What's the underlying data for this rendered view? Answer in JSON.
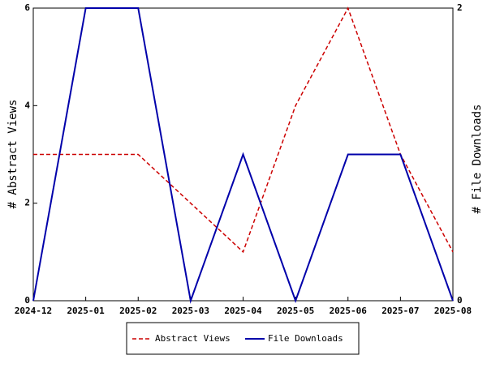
{
  "chart_data": {
    "type": "line",
    "y_label": "# Abstract Views",
    "y2_label": "# File Downloads",
    "categories": [
      "2024-12",
      "2025-01",
      "2025-02",
      "2025-03",
      "2025-04",
      "2025-05",
      "2025-06",
      "2025-07",
      "2025-08"
    ],
    "series": [
      {
        "name": "Abstract Views",
        "color": "#cc0000",
        "dash": true,
        "values": [
          3,
          3,
          3,
          2,
          1,
          4,
          6,
          3,
          1
        ]
      },
      {
        "name": "File Downloads",
        "color": "#0000aa",
        "dash": false,
        "axis": "y2",
        "values": [
          0,
          2,
          2,
          0,
          1,
          0,
          1,
          1,
          0
        ]
      }
    ],
    "ylim": [
      0,
      6
    ],
    "yticks": [
      0,
      2,
      4,
      6
    ],
    "y2lim": [
      0,
      2
    ],
    "y2ticks": [
      0,
      2
    ],
    "legend": "bottom"
  }
}
